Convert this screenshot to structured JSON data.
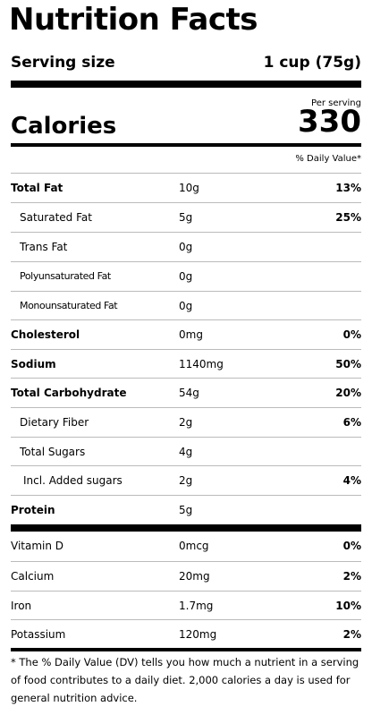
{
  "title": "Nutrition Facts",
  "serving": {
    "label": "Serving size",
    "value": "1 cup (75g)"
  },
  "per_serving": "Per serving",
  "calories": {
    "label": "Calories",
    "value": "330"
  },
  "dv_header": "% Daily Value*",
  "nutrients": [
    {
      "name": "Total Fat",
      "amount": "10g",
      "dv": "13%"
    },
    {
      "name": "Saturated Fat",
      "amount": "5g",
      "dv": "25%"
    },
    {
      "name": "Trans Fat",
      "amount": "0g",
      "dv": ""
    },
    {
      "name": "Polyunsaturated Fat",
      "amount": "0g",
      "dv": ""
    },
    {
      "name": "Monounsaturated Fat",
      "amount": "0g",
      "dv": ""
    },
    {
      "name": "Cholesterol",
      "amount": "0mg",
      "dv": "0%"
    },
    {
      "name": "Sodium",
      "amount": "1140mg",
      "dv": "50%"
    },
    {
      "name": "Total Carbohydrate",
      "amount": "54g",
      "dv": "20%"
    },
    {
      "name": "Dietary Fiber",
      "amount": "2g",
      "dv": "6%"
    },
    {
      "name": "Total Sugars",
      "amount": "4g",
      "dv": ""
    },
    {
      "name": "Incl. Added sugars",
      "amount": "2g",
      "dv": "4%"
    },
    {
      "name": "Protein",
      "amount": "5g",
      "dv": ""
    }
  ],
  "vitamins": [
    {
      "name": "Vitamin D",
      "amount": "0mcg",
      "dv": "0%"
    },
    {
      "name": "Calcium",
      "amount": "20mg",
      "dv": "2%"
    },
    {
      "name": "Iron",
      "amount": "1.7mg",
      "dv": "10%"
    },
    {
      "name": "Potassium",
      "amount": "120mg",
      "dv": "2%"
    }
  ],
  "footnote": "* The % Daily Value (DV) tells you how much a nutrient in a serving of food contributes to a daily diet. 2,000 calories a day is used for general nutrition advice."
}
